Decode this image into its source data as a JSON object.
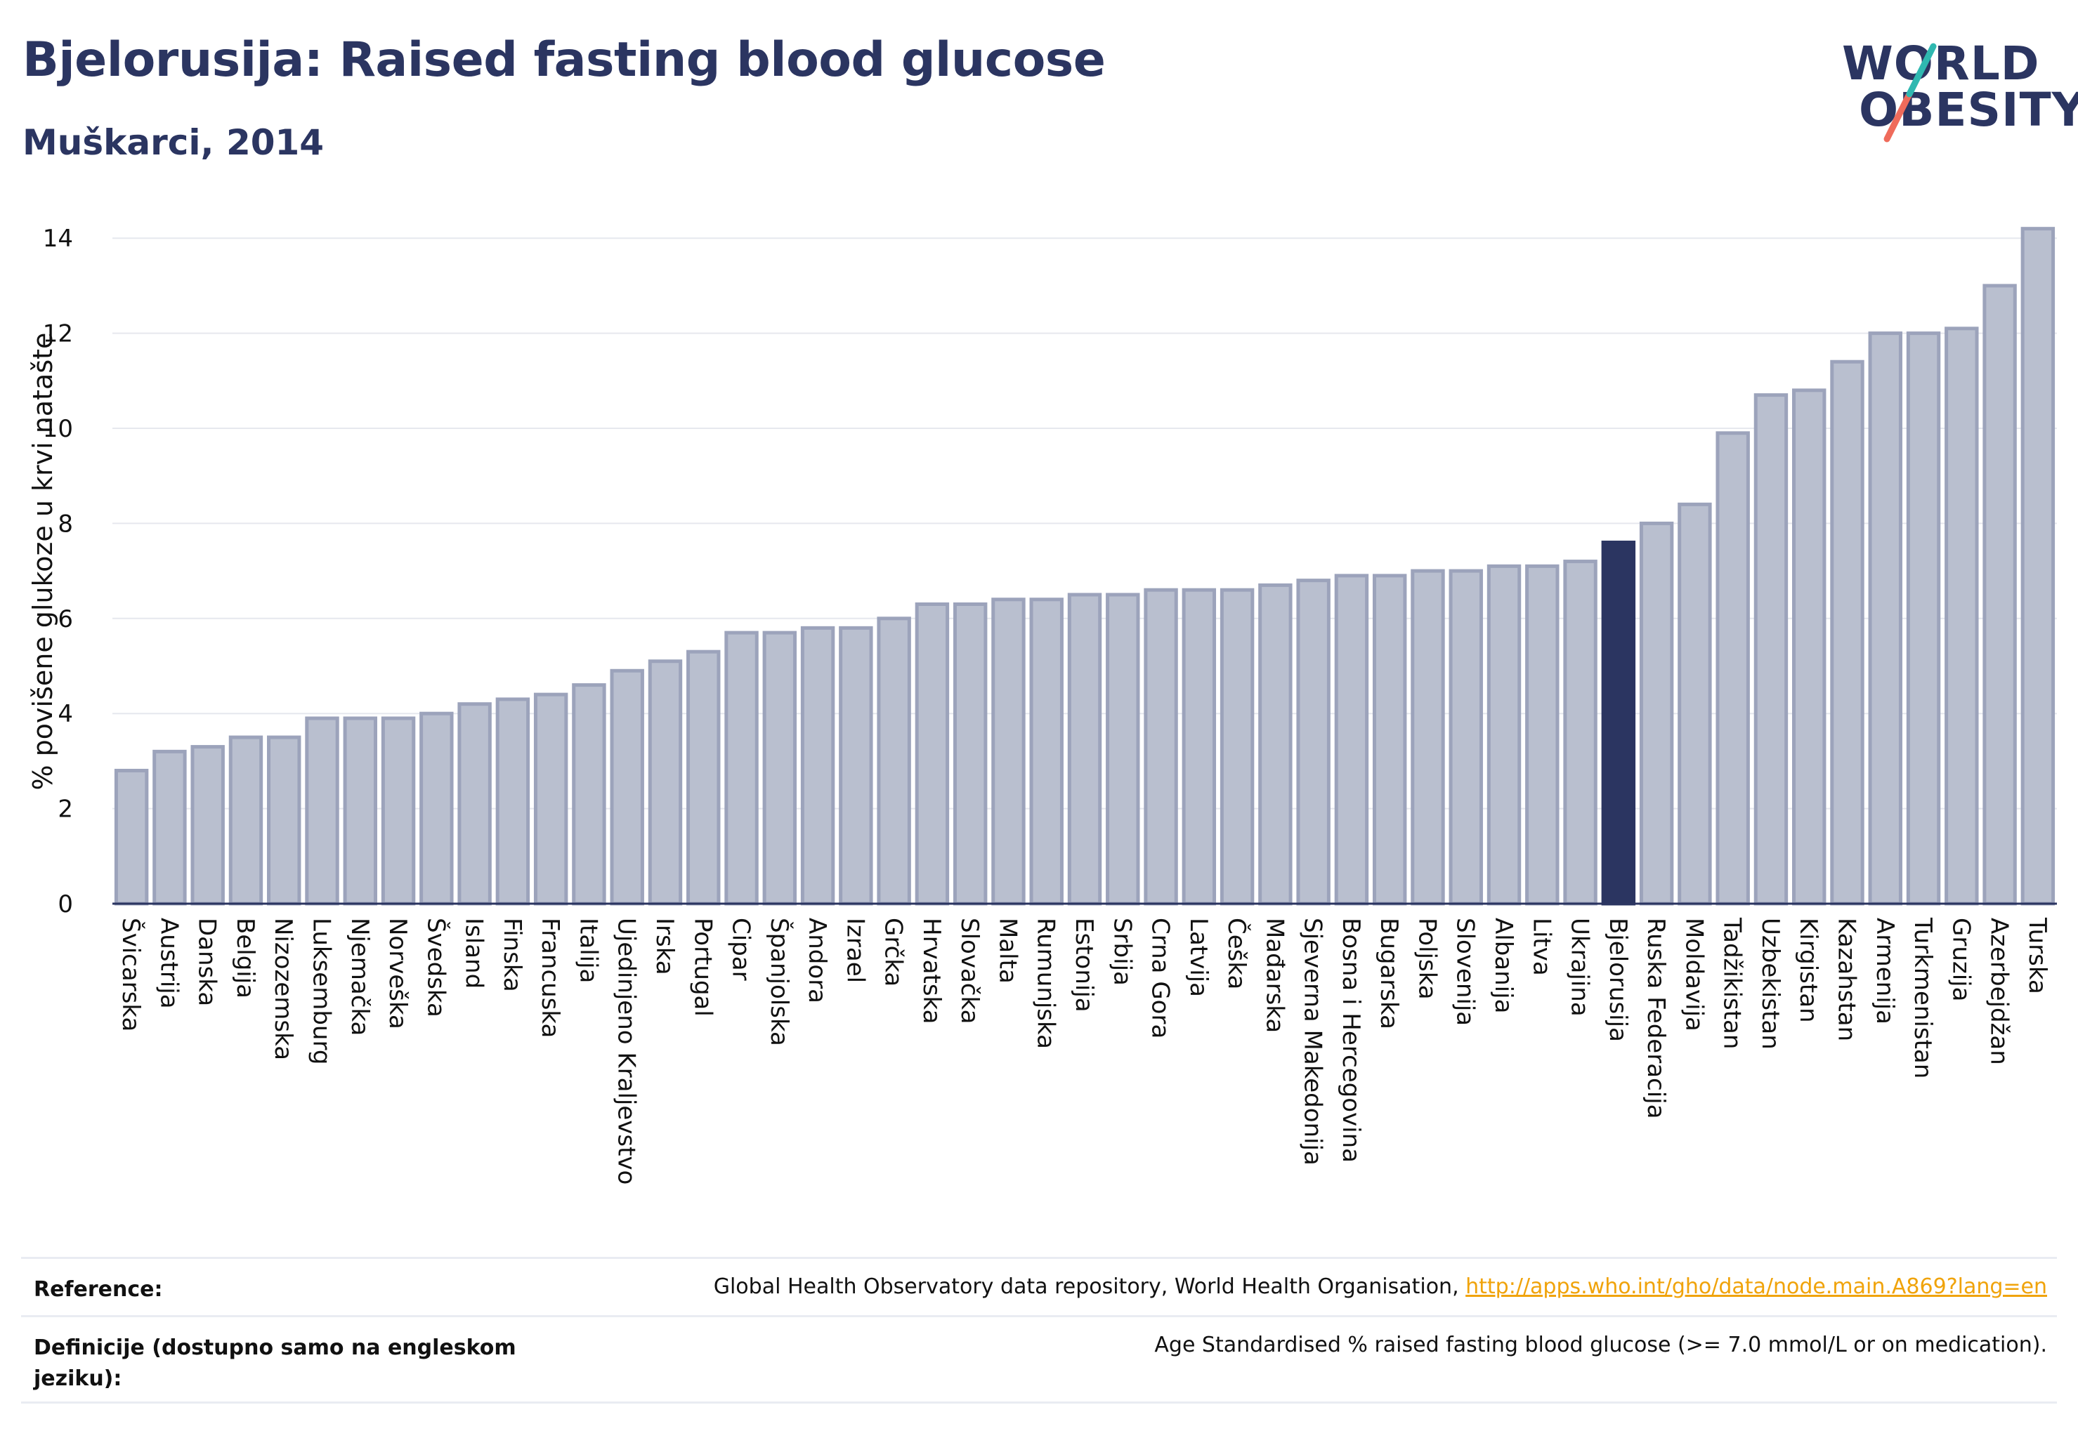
{
  "title": "Bjelorusija: Raised fasting blood glucose",
  "subtitle": "Muškarci, 2014",
  "logo": {
    "line1": "WORLD",
    "line2": "OBESITY",
    "slash_colors": [
      "#2fb8b0",
      "#ef6b5b"
    ]
  },
  "colors": {
    "bar": "#b9bfcf",
    "bar_edge": "#9ca3bb",
    "highlight": "#2b3561",
    "grid": "#e6e8ee",
    "axis": "#2b3561"
  },
  "chart_data": {
    "type": "bar",
    "ylabel": "% povišene glukoze u krvi natašte",
    "ylim": [
      0,
      14.4
    ],
    "yticks": [
      0,
      2,
      4,
      6,
      8,
      10,
      12,
      14
    ],
    "grid": true,
    "highlight": "Bjelorusija",
    "categories": [
      "Švicarska",
      "Austrija",
      "Danska",
      "Belgija",
      "Nizozemska",
      "Luksemburg",
      "Njemačka",
      "Norveška",
      "Švedska",
      "Island",
      "Finska",
      "Francuska",
      "Italija",
      "Ujedinjeno Kraljevstvo",
      "Irska",
      "Portugal",
      "Cipar",
      "Španjolska",
      "Andora",
      "Izrael",
      "Grčka",
      "Hrvatska",
      "Slovačka",
      "Malta",
      "Rumunjska",
      "Estonija",
      "Srbija",
      "Crna Gora",
      "Latvija",
      "Češka",
      "Mađarska",
      "Sjeverna Makedonija",
      "Bosna i Hercegovina",
      "Bugarska",
      "Poljska",
      "Slovenija",
      "Albanija",
      "Litva",
      "Ukrajina",
      "Bjelorusija",
      "Ruska Federacija",
      "Moldavija",
      "Tadžikistan",
      "Uzbekistan",
      "Kirgistan",
      "Kazahstan",
      "Armenija",
      "Turkmenistan",
      "Gruzija",
      "Azerbejdžan",
      "Turska"
    ],
    "values": [
      2.8,
      3.2,
      3.3,
      3.5,
      3.5,
      3.9,
      3.9,
      3.9,
      4.0,
      4.2,
      4.3,
      4.4,
      4.6,
      4.9,
      5.1,
      5.3,
      5.7,
      5.7,
      5.8,
      5.8,
      6.0,
      6.3,
      6.3,
      6.4,
      6.4,
      6.5,
      6.5,
      6.6,
      6.6,
      6.6,
      6.7,
      6.8,
      6.9,
      6.9,
      7.0,
      7.0,
      7.1,
      7.1,
      7.2,
      7.6,
      8.0,
      8.4,
      9.9,
      10.7,
      10.8,
      11.4,
      12.0,
      12.0,
      12.1,
      13.0,
      14.2
    ]
  },
  "reference": {
    "label": "Reference:",
    "text": "Global Health Observatory data repository, World Health Organisation, ",
    "link": "http://apps.who.int/gho/data/node.main.A869?lang=en"
  },
  "definition": {
    "label": "Definicije (dostupno samo na engleskom jeziku):",
    "text": "Age Standardised % raised fasting blood glucose (>= 7.0 mmol/L or on medication)."
  }
}
